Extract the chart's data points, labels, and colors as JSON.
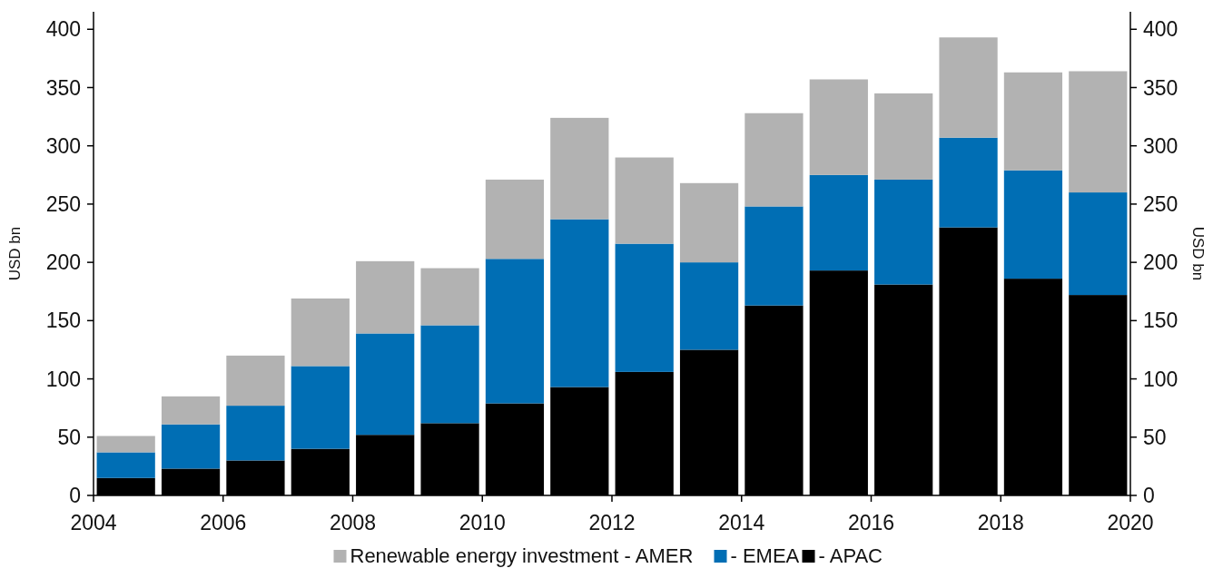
{
  "chart_data": {
    "type": "bar",
    "stacked": true,
    "x": [
      2004.5,
      2005.5,
      2006.5,
      2007.5,
      2008.5,
      2009.5,
      2010.5,
      2011.5,
      2012.5,
      2013.5,
      2014.5,
      2015.5,
      2016.5,
      2017.5,
      2018.5,
      2019.5
    ],
    "series": [
      {
        "name": "- APAC",
        "color": "#000000",
        "values": [
          15,
          23,
          30,
          40,
          52,
          62,
          79,
          93,
          106,
          125,
          163,
          193,
          181,
          230,
          186,
          172
        ]
      },
      {
        "name": "- EMEA",
        "color": "#006eb4",
        "values": [
          22,
          38,
          47,
          71,
          87,
          84,
          124,
          144,
          110,
          75,
          85,
          82,
          90,
          77,
          93,
          88
        ]
      },
      {
        "name": "Renewable energy investment - AMER",
        "color": "#b2b2b2",
        "values": [
          14,
          24,
          43,
          58,
          62,
          49,
          68,
          87,
          74,
          68,
          80,
          82,
          74,
          86,
          84,
          104
        ]
      }
    ],
    "xlim": [
      2004,
      2020
    ],
    "xticks": [
      2004,
      2006,
      2008,
      2010,
      2012,
      2014,
      2016,
      2018,
      2020
    ],
    "ylim": [
      0,
      415
    ],
    "yticks": [
      0,
      50,
      100,
      150,
      200,
      250,
      300,
      350,
      400
    ],
    "y2lim": [
      0,
      415
    ],
    "y2ticks": [
      0,
      50,
      100,
      150,
      200,
      250,
      300,
      350,
      400
    ],
    "ylabel": "USD bn",
    "y2label": "USD bn",
    "legend": "bottom",
    "grid": false
  }
}
